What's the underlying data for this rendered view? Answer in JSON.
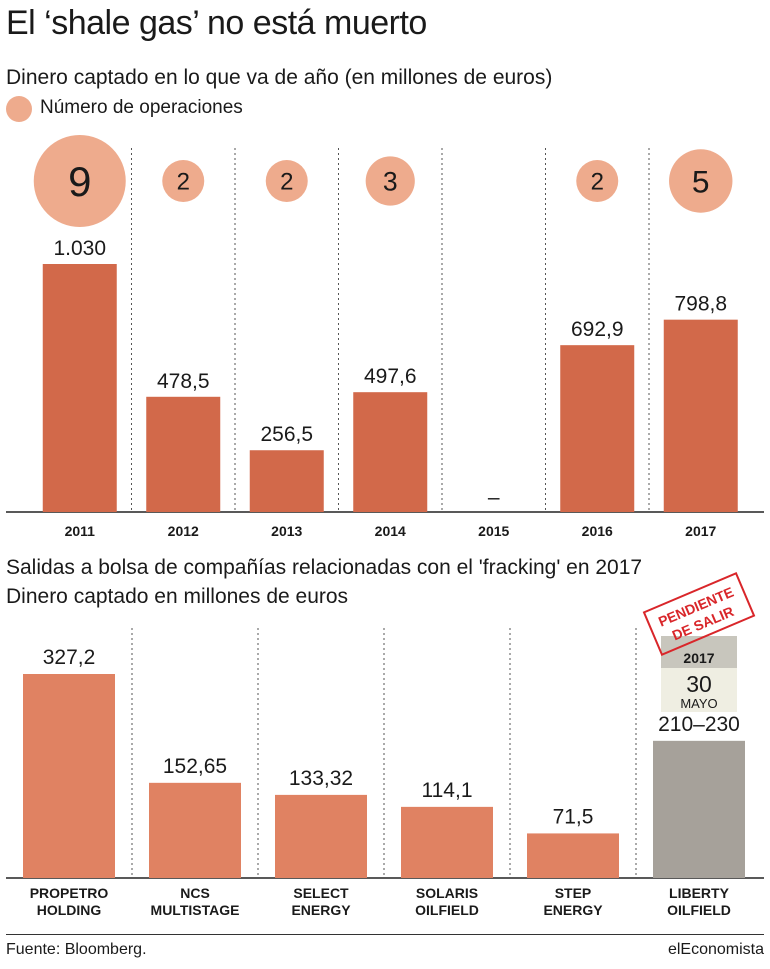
{
  "title": "El ‘shale gas’ no está muerto",
  "chart1": {
    "subtitle": "Dinero captado en lo que va de año (en millones de euros)",
    "legend_label": "Número de operaciones"
  },
  "chart2": {
    "subtitle_line1": "Salidas a bolsa de compañías relacionadas con el 'fracking' en 2017",
    "subtitle_line2": "Dinero captado en millones de euros",
    "stamp_line1": "PENDIENTE",
    "stamp_line2": "DE SALIR",
    "date_year": "2017",
    "date_day": "30",
    "date_month": "MAYO"
  },
  "footer": {
    "source": "Fuente: Bloomberg.",
    "brand": "elEconomista"
  },
  "colors": {
    "bar_primary": "#d2694a",
    "bar_secondary": "#e08262",
    "bubble": "#eeab8d",
    "bar_pending": "#a6a19a",
    "date_header": "#c8c6bd",
    "date_body": "#efeee2",
    "stamp": "#d9262a"
  },
  "chart_data": [
    {
      "type": "bar",
      "categories": [
        "2011",
        "2012",
        "2013",
        "2014",
        "2015",
        "2016",
        "2017"
      ],
      "values": [
        1030,
        478.5,
        256.5,
        497.6,
        null,
        692.9,
        798.8
      ],
      "value_labels": [
        "1.030",
        "478,5",
        "256,5",
        "497,6",
        "–",
        "692,9",
        "798,8"
      ],
      "operations": [
        9,
        2,
        2,
        3,
        null,
        2,
        5
      ],
      "ylim": [
        0,
        1030
      ],
      "grid": false,
      "legend": "top-left"
    },
    {
      "type": "bar",
      "categories": [
        "PROPETRO HOLDING",
        "NCS MULTISTAGE",
        "SELECT ENERGY",
        "SOLARIS OILFIELD",
        "STEP ENERGY",
        "LIBERTY OILFIELD"
      ],
      "category_lines": [
        [
          "PROPETRO",
          "HOLDING"
        ],
        [
          "NCS",
          "MULTISTAGE"
        ],
        [
          "SELECT",
          "ENERGY"
        ],
        [
          "SOLARIS",
          "OILFIELD"
        ],
        [
          "STEP",
          "ENERGY"
        ],
        [
          "LIBERTY",
          "OILFIELD"
        ]
      ],
      "values": [
        327.2,
        152.65,
        133.32,
        114.1,
        71.5,
        220
      ],
      "value_labels": [
        "327,2",
        "152,65",
        "133,32",
        "114,1",
        "71,5",
        "210–230"
      ],
      "pending": [
        false,
        false,
        false,
        false,
        false,
        true
      ],
      "ylim": [
        0,
        327.2
      ],
      "grid": false
    }
  ]
}
